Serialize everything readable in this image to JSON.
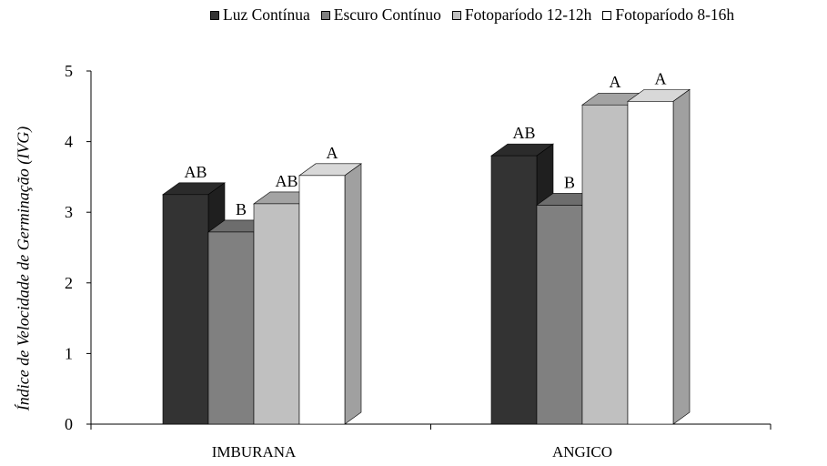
{
  "chart_data": {
    "type": "bar",
    "style": "3d-clustered",
    "categories": [
      "IMBURANA",
      "ANGICO"
    ],
    "series": [
      {
        "name": "Luz Contínua",
        "values": [
          3.25,
          3.8
        ],
        "labels": [
          "AB",
          "AB"
        ],
        "color": "#333333"
      },
      {
        "name": "Escuro Contínuo",
        "values": [
          2.72,
          3.1
        ],
        "labels": [
          "B",
          "B"
        ],
        "color": "#808080"
      },
      {
        "name": "Fotoparíodo 12-12h",
        "values": [
          3.12,
          4.52
        ],
        "labels": [
          "AB",
          "A"
        ],
        "color": "#c0c0c0"
      },
      {
        "name": "Fotoparíodo 8-16h",
        "values": [
          3.52,
          4.57
        ],
        "labels": [
          "A",
          "A"
        ],
        "color": "#ffffff"
      }
    ],
    "ylabel": "Índice de Velocidade de Germinação (IVG)",
    "xlabel": "",
    "ylim": [
      0,
      5
    ],
    "yticks": [
      "0",
      "1",
      "2",
      "3",
      "4",
      "5"
    ],
    "grid": false,
    "legend_position": "top"
  }
}
